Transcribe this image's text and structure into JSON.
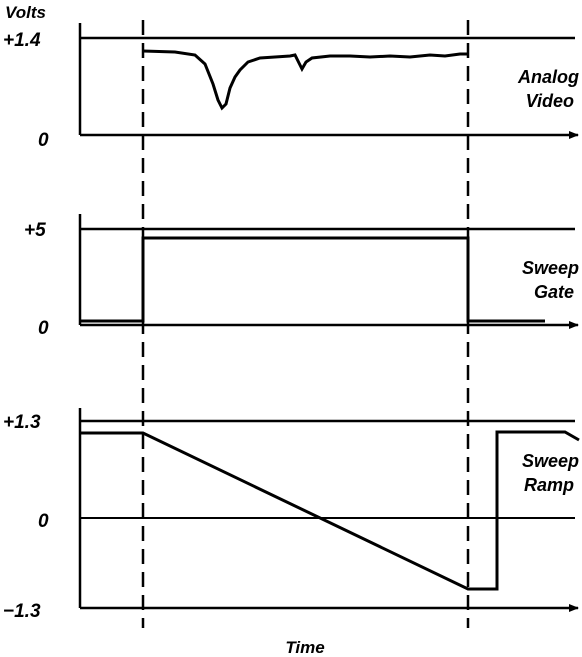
{
  "axis": {
    "volts_label": "Volts",
    "time_label": "Time"
  },
  "panels": {
    "analog_video": {
      "top_value": "+1.4",
      "zero_value": "0",
      "name_line1": "Analog",
      "name_line2": "Video"
    },
    "sweep_gate": {
      "top_value": "+5",
      "zero_value": "0",
      "name_line1": "Sweep",
      "name_line2": "Gate"
    },
    "sweep_ramp": {
      "top_value": "+1.3",
      "zero_value": "0",
      "bottom_value": "−1.3",
      "name_line1": "Sweep",
      "name_line2": "Ramp"
    }
  },
  "colors": {
    "ink": "#000000",
    "background": "#ffffff"
  }
}
